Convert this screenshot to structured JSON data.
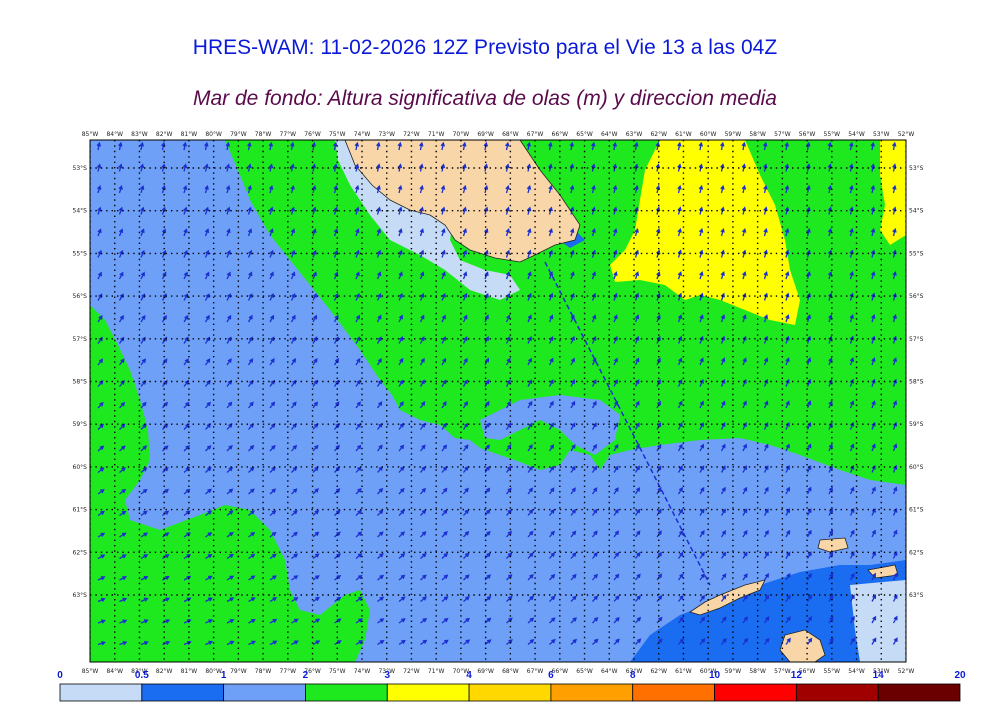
{
  "title": "HRES-WAM: 11-02-2026 12Z Previsto para el Vie 13 a las 04Z",
  "subtitle": "Mar de fondo: Altura significativa de olas (m) y direccion media",
  "lon_labels": [
    "85°W",
    "84°W",
    "83°W",
    "82°W",
    "81°W",
    "80°W",
    "79°W",
    "78°W",
    "77°W",
    "76°W",
    "75°W",
    "74°W",
    "73°W",
    "72°W",
    "71°W",
    "70°W",
    "69°W",
    "68°W",
    "67°W",
    "66°W",
    "65°W",
    "64°W",
    "63°W",
    "62°W",
    "61°W",
    "60°W",
    "59°W",
    "58°W",
    "57°W",
    "56°W",
    "55°W",
    "54°W",
    "53°W",
    "52°W"
  ],
  "lat_labels": [
    "53°S",
    "54°S",
    "55°S",
    "56°S",
    "57°S",
    "58°S",
    "59°S",
    "60°S",
    "61°S",
    "62°S",
    "63°S"
  ],
  "legend": {
    "levels": [
      "0",
      "0.5",
      "1",
      "2",
      "3",
      "4",
      "6",
      "8",
      "10",
      "12",
      "14",
      "20"
    ],
    "colors": [
      "#c6dcf6",
      "#1a6cf0",
      "#6fa0f8",
      "#1ee81e",
      "#ffff00",
      "#ffd800",
      "#ffa000",
      "#ff7000",
      "#ff0000",
      "#a00000",
      "#6a0000",
      "#404040"
    ]
  },
  "colors": {
    "land": "#f9d6a8",
    "sea_1_2": "#6fa0f8",
    "sea_2_3": "#1ee81e",
    "sea_3_4": "#ffff00",
    "sea_05_1": "#1a6cf0",
    "sea_0_05": "#c6dcf6",
    "arrow": "#1a2fd0"
  }
}
